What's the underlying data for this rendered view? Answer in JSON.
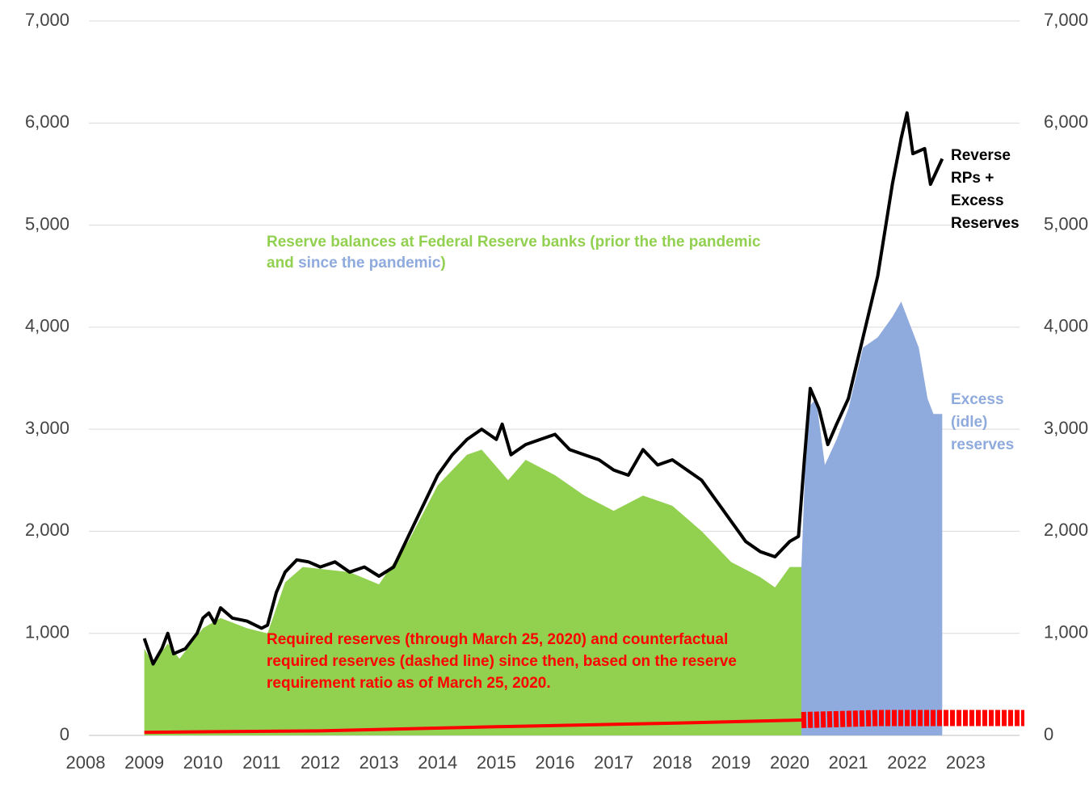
{
  "chart_data": {
    "type": "line",
    "xlim": [
      2008,
      2024
    ],
    "xticks": [
      2008,
      2009,
      2010,
      2011,
      2012,
      2013,
      2014,
      2015,
      2016,
      2017,
      2018,
      2019,
      2020,
      2021,
      2022,
      2023
    ],
    "ylim": [
      0,
      7000
    ],
    "yticks": [
      0,
      {
        "value": 1000,
        "label": "1,000"
      },
      {
        "value": 2000,
        "label": "2,000"
      },
      {
        "value": 3000,
        "label": "3,000"
      },
      {
        "value": 4000,
        "label": "4,000"
      },
      {
        "value": 5000,
        "label": "5,000"
      },
      {
        "value": 6000,
        "label": "6,000"
      },
      {
        "value": 7000,
        "label": "7,000"
      }
    ],
    "y2lim": [
      0,
      7000
    ],
    "y2ticks": [
      0,
      {
        "value": 1000,
        "label": "1,000"
      },
      {
        "value": 2000,
        "label": "2,000"
      },
      {
        "value": 3000,
        "label": "3,000"
      },
      {
        "value": 4000,
        "label": "4,000"
      },
      {
        "value": 5000,
        "label": "5,000"
      },
      {
        "value": 6000,
        "label": "6,000"
      },
      {
        "value": 7000,
        "label": "7,000"
      }
    ],
    "grid": true,
    "series": [
      {
        "kind": "area",
        "color": "#92d050",
        "x": [
          2009,
          2009.15,
          2009.4,
          2009.6,
          2010,
          2010.3,
          2010.75,
          2011.1,
          2011.4,
          2011.7,
          2012.5,
          2013,
          2013.5,
          2014,
          2014.5,
          2014.75,
          2015.2,
          2015.5,
          2016,
          2016.5,
          2017,
          2017.5,
          2018,
          2018.5,
          2019,
          2019.5,
          2019.75,
          2020.0,
          2020.2
        ],
        "values": [
          850,
          700,
          900,
          750,
          1050,
          1150,
          1050,
          1000,
          1500,
          1650,
          1600,
          1480,
          1900,
          2450,
          2750,
          2800,
          2500,
          2700,
          2550,
          2350,
          2200,
          2350,
          2250,
          2000,
          1700,
          1550,
          1450,
          1650,
          1650
        ]
      },
      {
        "kind": "area",
        "color": "#8faadc",
        "x": [
          2020.2,
          2020.3,
          2020.45,
          2020.6,
          2020.8,
          2021,
          2021.25,
          2021.5,
          2021.75,
          2021.9,
          2022,
          2022.2,
          2022.35,
          2022.45,
          2022.6
        ],
        "values": [
          1650,
          3200,
          3300,
          2650,
          2900,
          3200,
          3800,
          3900,
          4100,
          4250,
          4100,
          3800,
          3300,
          3150,
          3150
        ]
      },
      {
        "kind": "line",
        "color": "#000000",
        "x": [
          2009.0,
          2009.15,
          2009.3,
          2009.4,
          2009.5,
          2009.7,
          2009.9,
          2010.0,
          2010.1,
          2010.2,
          2010.3,
          2010.5,
          2010.75,
          2011.0,
          2011.1,
          2011.25,
          2011.4,
          2011.6,
          2011.8,
          2012.0,
          2012.25,
          2012.5,
          2012.75,
          2013.0,
          2013.25,
          2013.5,
          2013.75,
          2014.0,
          2014.25,
          2014.5,
          2014.75,
          2015.0,
          2015.1,
          2015.25,
          2015.5,
          2015.75,
          2016.0,
          2016.25,
          2016.5,
          2016.75,
          2017.0,
          2017.25,
          2017.5,
          2017.75,
          2018.0,
          2018.25,
          2018.5,
          2018.75,
          2019.0,
          2019.25,
          2019.5,
          2019.75,
          2020.0,
          2020.15,
          2020.25,
          2020.35,
          2020.5,
          2020.65,
          2020.8,
          2021.0,
          2021.25,
          2021.5,
          2021.75,
          2021.9,
          2022.0,
          2022.1,
          2022.3,
          2022.4,
          2022.6
        ],
        "values": [
          950,
          700,
          850,
          1000,
          800,
          850,
          1000,
          1150,
          1200,
          1100,
          1250,
          1150,
          1120,
          1050,
          1080,
          1400,
          1600,
          1720,
          1700,
          1650,
          1700,
          1600,
          1650,
          1560,
          1650,
          1950,
          2250,
          2550,
          2750,
          2900,
          3000,
          2900,
          3050,
          2750,
          2850,
          2900,
          2950,
          2800,
          2750,
          2700,
          2600,
          2550,
          2800,
          2650,
          2700,
          2600,
          2500,
          2300,
          2100,
          1900,
          1800,
          1750,
          1900,
          1950,
          2700,
          3400,
          3200,
          2850,
          3050,
          3300,
          3900,
          4500,
          5400,
          5850,
          6100,
          5700,
          5750,
          5400,
          5650
        ]
      },
      {
        "kind": "line",
        "color": "#ff0000",
        "x": [
          2009,
          2012,
          2015,
          2018,
          2020.2
        ],
        "values": [
          30,
          45,
          85,
          120,
          150
        ]
      },
      {
        "kind": "dashed",
        "color": "#ff0000",
        "x": [
          2020.2,
          2021.5,
          2024
        ],
        "values": [
          150,
          170,
          170
        ]
      }
    ],
    "annotations": {
      "reserves": [
        "Reserve balances at Federal Reserve banks (prior the the pandemic",
        "and ",
        "since the pandemic",
        ")"
      ],
      "total": [
        "Reverse",
        "RPs +",
        "Excess",
        "Reserves"
      ],
      "excess": [
        "Excess",
        "(idle)",
        "reserves"
      ],
      "required": [
        "Required reserves (through March 25, 2020) and counterfactual",
        "required reserves (dashed line) since then, based on the reserve",
        "requirement ratio as of March 25, 2020."
      ]
    }
  }
}
